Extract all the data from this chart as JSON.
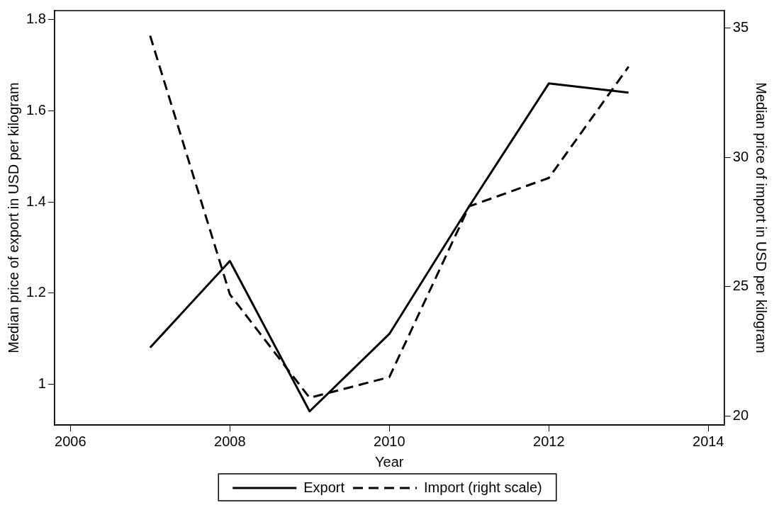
{
  "chart_data": {
    "type": "line",
    "xlabel": "Year",
    "ylabel": "Median price of export in USD per kilogram",
    "y2label": "Median price of import in USD per kilogram",
    "x": [
      2007,
      2008,
      2009,
      2010,
      2011,
      2012,
      2013
    ],
    "series": [
      {
        "name": "Export",
        "color": "#000000",
        "values": [
          1.08,
          1.27,
          0.94,
          1.11,
          1.39,
          1.66,
          1.64
        ],
        "line_style": "solid"
      },
      {
        "name": "Import (right scale)",
        "color": "#000000",
        "values": [
          34.7,
          24.7,
          20.7,
          21.5,
          28.1,
          29.2,
          33.5
        ],
        "axis": "y2",
        "line_style": "dashed"
      }
    ],
    "xlim": [
      2005.8,
      2014.2
    ],
    "xticks": [
      2006,
      2008,
      2010,
      2012,
      2014
    ],
    "ylim": [
      0.91,
      1.82
    ],
    "yticks": [
      1,
      1.2,
      1.4,
      1.6,
      1.8
    ],
    "y2lim": [
      19.65,
      35.67
    ],
    "y2ticks": [
      20,
      25,
      30,
      35
    ],
    "grid": false,
    "legend": "bottom",
    "marker": "none"
  }
}
